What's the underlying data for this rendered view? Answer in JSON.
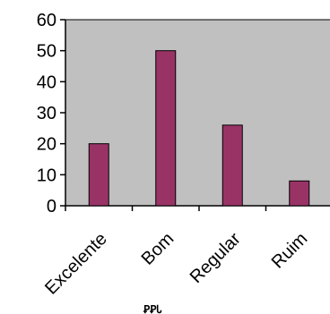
{
  "chart_data": {
    "type": "bar",
    "categories": [
      "Excelente",
      "Bom",
      "Regular",
      "Ruim"
    ],
    "values": [
      20,
      50,
      26,
      8
    ],
    "title": "",
    "xlabel": "",
    "ylabel": "",
    "ylim": [
      0,
      60
    ],
    "yticks": [
      "0",
      "10",
      "20",
      "30",
      "40",
      "50",
      "60"
    ],
    "grid": false,
    "legend": "none",
    "colors": {
      "plot_background": "#c0c0c0",
      "bar_fill": "#993366",
      "bar_stroke": "#000000",
      "axis": "#000000"
    }
  },
  "artifact": {
    "text": "ꝐꝐᏓ"
  }
}
